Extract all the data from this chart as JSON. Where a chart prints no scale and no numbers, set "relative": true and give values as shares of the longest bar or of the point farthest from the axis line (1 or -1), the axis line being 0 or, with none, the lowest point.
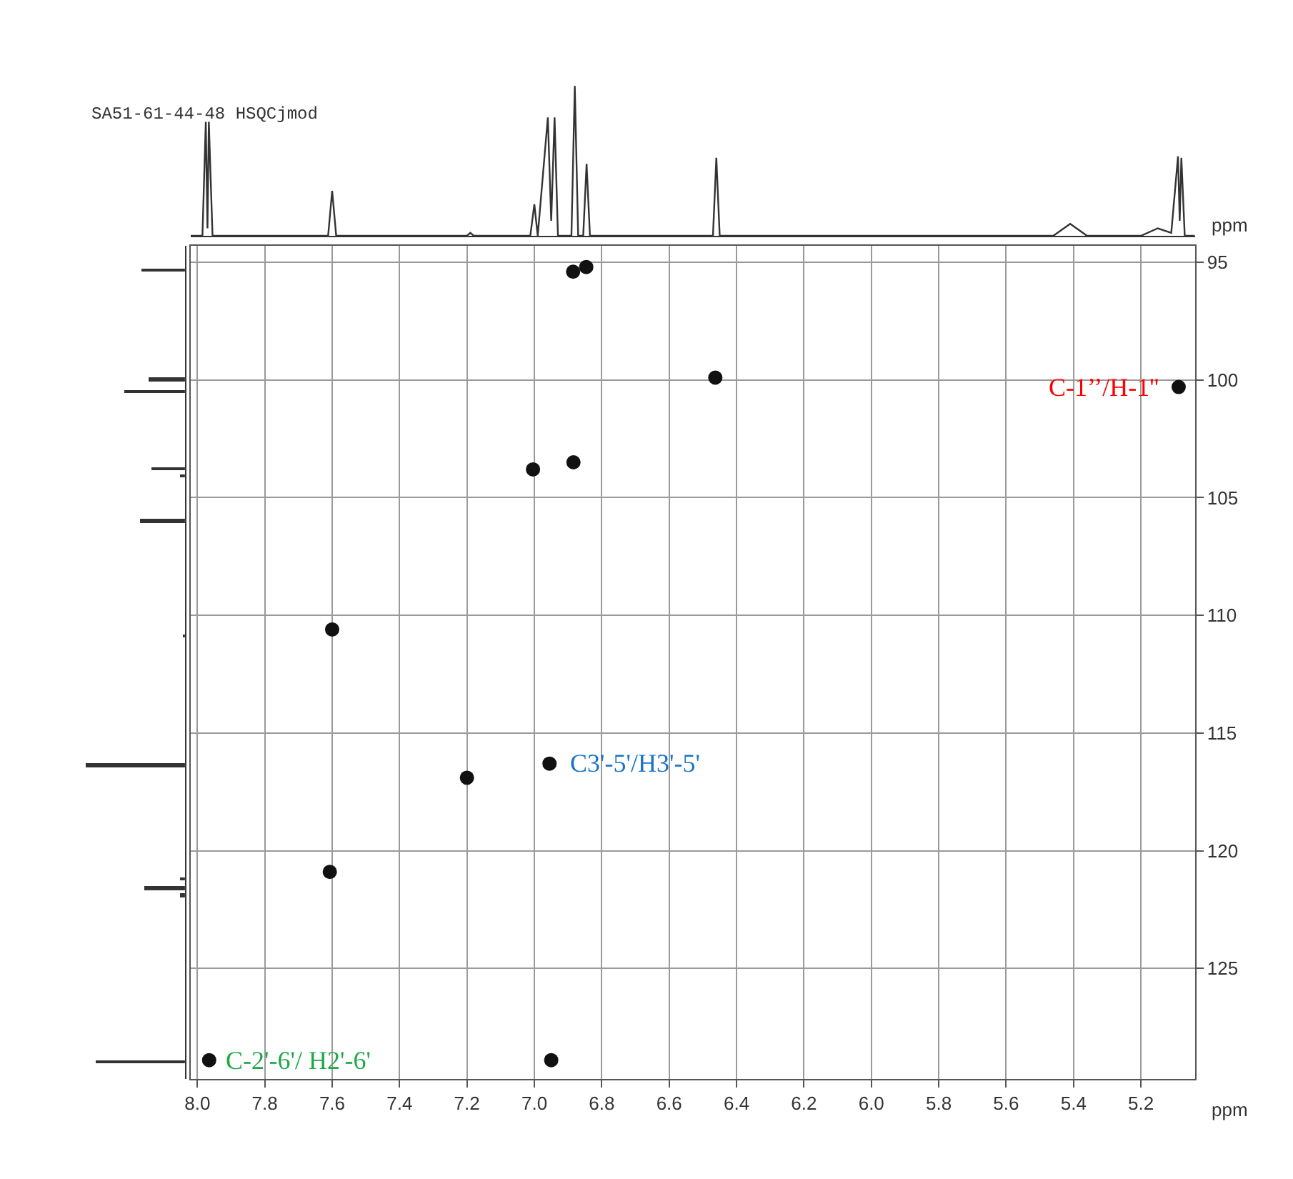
{
  "chart_data": [
    {
      "type": "scatter",
      "xlabel": "ppm",
      "ylabel": "ppm",
      "x": [
        6.885,
        6.846,
        6.463,
        7.004,
        6.884,
        7.6,
        5.088,
        6.955,
        7.2,
        7.607,
        7.965,
        6.95
      ],
      "series": [
        {
          "color": "#111111",
          "values": [
            95.4,
            95.2,
            99.9,
            103.8,
            103.5,
            110.6,
            100.3,
            116.3,
            116.9,
            120.9,
            128.9,
            128.9
          ]
        }
      ],
      "marker": "circle",
      "grid": true,
      "xlim": [
        8.02,
        5.04
      ],
      "ylim": [
        129.7,
        94.3
      ],
      "xticks": [
        {
          "value": 8.0,
          "label": "8.0"
        },
        7.8,
        7.6,
        7.4,
        7.2,
        {
          "value": 7.0,
          "label": "7.0"
        },
        6.8,
        6.6,
        6.4,
        6.2,
        {
          "value": 6.0,
          "label": "6.0"
        },
        5.8,
        5.6,
        5.4,
        5.2
      ],
      "yticks": [
        95,
        100,
        105,
        110,
        115,
        120,
        125
      ],
      "annotations": [
        {
          "text": "C-1’’/H-1''",
          "x": 5.088,
          "y": 100.3
        },
        {
          "text": "C3'-5'/H3'-5'",
          "x": 6.955,
          "y": 116.3
        },
        {
          "text": "C-2'-6'/ H2'-6'",
          "x": 7.965,
          "y": 128.9
        }
      ]
    },
    {
      "type": "line",
      "title": "SA51-61-44-48 HSQCjmod",
      "relative": true,
      "tick_labels": false,
      "xlim": [
        8.02,
        5.04
      ],
      "x": [
        8.02,
        7.985,
        7.975,
        7.97,
        7.966,
        7.955,
        7.612,
        7.6,
        7.588,
        7.2,
        7.19,
        7.18,
        7.012,
        7.0,
        6.99,
        6.96,
        6.95,
        6.94,
        6.93,
        6.89,
        6.88,
        6.87,
        6.855,
        6.845,
        6.835,
        6.47,
        6.46,
        6.45,
        5.46,
        5.41,
        5.36,
        5.2,
        5.15,
        5.11,
        5.09,
        5.085,
        5.08,
        5.07,
        5.04
      ],
      "series": [
        {
          "color": "#333333",
          "values": [
            0,
            0,
            0.76,
            0.05,
            0.76,
            0,
            0,
            0.3,
            0,
            0,
            0.02,
            0,
            0,
            0.21,
            0,
            0.79,
            0.1,
            0.79,
            0,
            0,
            1.0,
            0,
            0,
            0.48,
            0,
            0,
            0.52,
            0,
            0,
            0.08,
            0,
            0,
            0.05,
            0.02,
            0.53,
            0.1,
            0.52,
            0,
            0
          ]
        }
      ]
    },
    {
      "type": "bar",
      "orientation": "horizontal",
      "relative": true,
      "tick_labels": false,
      "ylim": [
        129.7,
        94.3
      ],
      "x": [
        95.35,
        100.0,
        100.5,
        103.8,
        104.1,
        106.0,
        110.9,
        116.4,
        121.2,
        121.6,
        121.9,
        129.0
      ],
      "series": [
        {
          "color": "#333333",
          "values": [
            0.44,
            0.37,
            0.61,
            0.34,
            0.05,
            0.46,
            0.03,
            1,
            0.05,
            0.41,
            0.05,
            0.9
          ]
        }
      ]
    }
  ]
}
